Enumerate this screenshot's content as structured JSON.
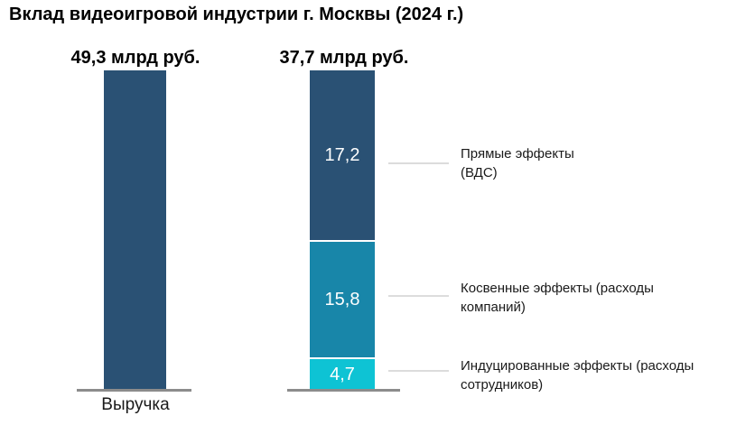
{
  "title": "Вклад видеоигровой индустрии г. Москвы (2024 г.)",
  "colors": {
    "dark_blue": "#2a5174",
    "medium_blue": "#1886a9",
    "cyan": "#0ec3d4",
    "baseline_gray": "#8c8c8c",
    "connector_gray": "#dcdcdc",
    "segment_value_text": "#ffffff",
    "text_black": "#000000"
  },
  "chart_data": {
    "type": "bar",
    "subtype": "stacked-comparison",
    "title": "Вклад видеоигровой индустрии г. Москвы (2024 г.)",
    "unit": "млрд руб.",
    "grid": false,
    "legend_position": "right-annotation-callouts",
    "bars": [
      {
        "category": "Выручка",
        "total": 49.3,
        "total_label": "49,3 млрд руб.",
        "segments": [
          {
            "name": "Выручка",
            "value": 49.3,
            "color": "#2a5174"
          }
        ]
      },
      {
        "category": "",
        "total": 37.7,
        "total_label": "37,7 млрд руб.",
        "segments": [
          {
            "name": "Прямые эффекты (ВДС)",
            "value": 17.2,
            "value_label": "17,2",
            "color": "#2a5174"
          },
          {
            "name": "Косвенные эффекты (расходы компаний)",
            "value": 15.8,
            "value_label": "15,8",
            "color": "#1886a9"
          },
          {
            "name": "Индуцированные эффекты (расходы сотрудников)",
            "value": 4.7,
            "value_label": "4,7",
            "color": "#0ec3d4"
          }
        ]
      }
    ],
    "annotations": [
      {
        "line1": "Прямые эффекты",
        "line2": "(ВДС)"
      },
      {
        "line1": "Косвенные эффекты (расходы",
        "line2": "компаний)"
      },
      {
        "line1": "Индуцированные эффекты (расходы",
        "line2": "сотрудников)"
      }
    ]
  }
}
